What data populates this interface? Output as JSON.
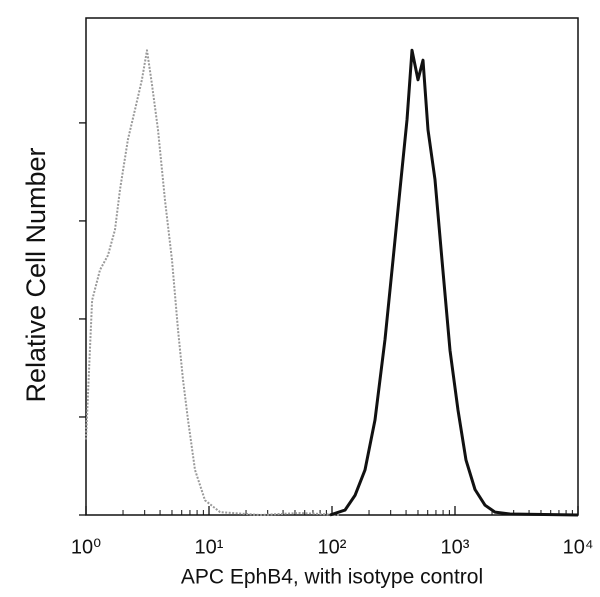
{
  "chart_data": {
    "type": "line",
    "x_label": "APC EphB4, with isotype control",
    "y_label": "Relative Cell Number",
    "xscale": "log",
    "xlim": [
      1,
      10000
    ],
    "xticks": [
      {
        "value": 1,
        "label": "10⁰"
      },
      {
        "value": 10,
        "label": "10¹"
      },
      {
        "value": 100,
        "label": "10²"
      },
      {
        "value": 1000,
        "label": "10³"
      },
      {
        "value": 10000,
        "label": "10⁴"
      }
    ],
    "xminor_ticks": [
      2,
      3,
      4,
      5,
      6,
      7,
      8,
      9,
      20,
      30,
      40,
      50,
      60,
      70,
      80,
      90,
      200,
      300,
      400,
      500,
      600,
      700,
      800,
      900,
      2000,
      3000,
      4000,
      5000,
      6000,
      7000,
      8000,
      9000
    ],
    "ylim": [
      0,
      507
    ],
    "yticks": [
      0,
      100,
      200,
      300,
      400
    ],
    "series": [
      {
        "color": "#9a9a9a",
        "x": [
          1,
          1.12,
          1.3,
          1.51,
          1.72,
          1.89,
          2.19,
          2.5,
          2.85,
          3.13,
          3.44,
          3.85,
          4.39,
          5.0,
          5.6,
          6.15,
          6.75,
          7.7,
          9.28,
          12.3,
          26.0,
          54.9,
          116
        ],
        "values": [
          77,
          219,
          250,
          265,
          291,
          332,
          383,
          413,
          444,
          474,
          439,
          393,
          321,
          260,
          189,
          138,
          97,
          46,
          15,
          3,
          0,
          2,
          0
        ]
      },
      {
        "color": "#111111",
        "x": [
          96.3,
          127.6,
          153.8,
          185.5,
          223.7,
          269.7,
          313.3,
          357.1,
          407.2,
          447.1,
          500.2,
          549.5,
          603.4,
          687.8,
          784.3,
          910.8,
          1057,
          1229,
          1454,
          1753,
          2115,
          2800,
          10000
        ],
        "values": [
          0,
          5,
          20,
          46,
          97,
          179,
          260,
          332,
          403,
          474,
          444,
          464,
          393,
          342,
          260,
          168,
          107,
          56,
          26,
          10,
          3,
          1,
          0
        ]
      }
    ]
  }
}
